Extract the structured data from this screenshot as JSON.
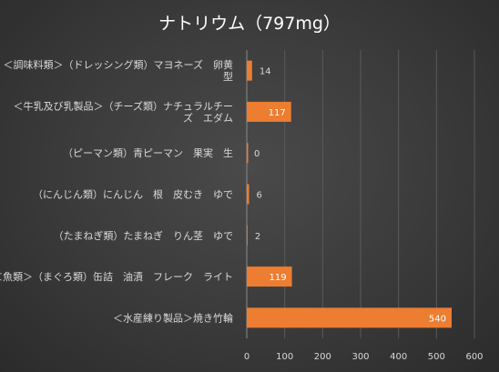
{
  "chart_data": {
    "type": "bar",
    "orientation": "horizontal",
    "title": "ナトリウム（797mg）",
    "categories": [
      [
        "＜調味料類＞（ドレッシング類）マヨネーズ　卵黄",
        "型"
      ],
      [
        "＜牛乳及び乳製品＞（チーズ類）ナチュラルチー",
        "ズ　エダム"
      ],
      [
        "（ピーマン類）青ピーマン　果実　生"
      ],
      [
        "（にんじん類）にんじん　根　皮むき　ゆで"
      ],
      [
        "（たまねぎ類）たまねぎ　りん茎　ゆで"
      ],
      [
        "＜魚類＞（まぐろ類）缶詰　油漬　フレーク　ライト"
      ],
      [
        "＜水産練り製品＞焼き竹輪"
      ]
    ],
    "values": [
      14,
      117,
      0,
      6,
      2,
      119,
      540
    ],
    "xlim": [
      0,
      600
    ],
    "xticks": [
      0,
      100,
      200,
      300,
      400,
      500,
      600
    ],
    "bar_color": "#ed7d31",
    "grid": true,
    "legend": false
  }
}
